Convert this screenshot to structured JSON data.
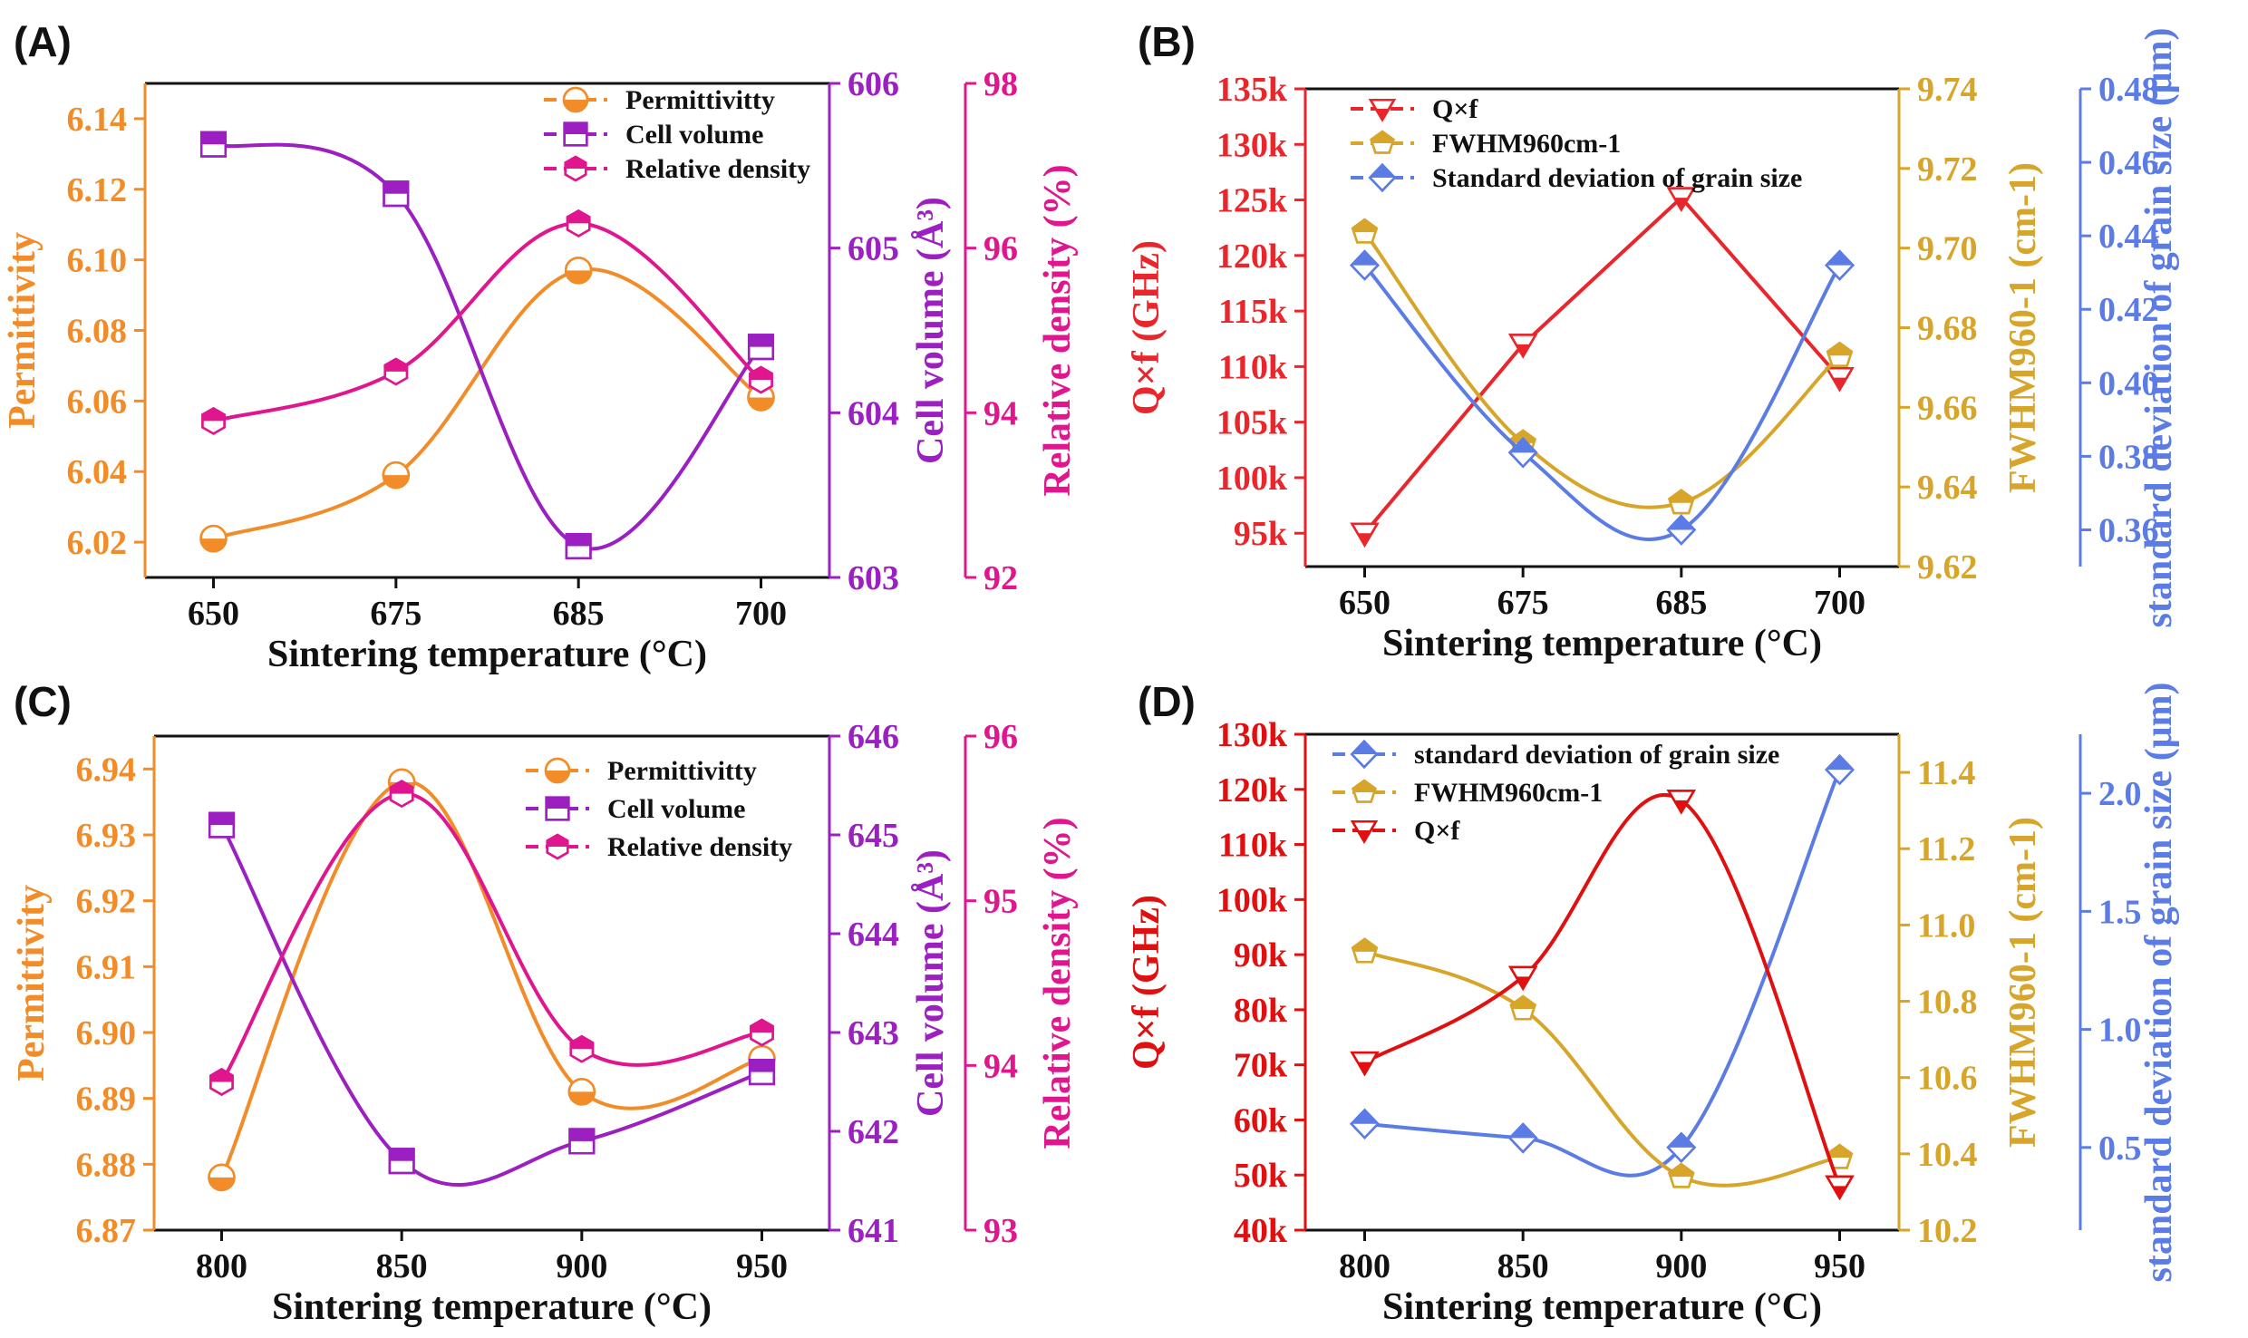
{
  "chart_data": [
    {
      "panel": "(A)",
      "type": "line",
      "xlabel": "Sintering temperature (°C)",
      "x": [
        650,
        675,
        685,
        700
      ],
      "xticks": [
        650,
        675,
        685,
        700
      ],
      "xtick_labels": [
        "650",
        "675",
        "685",
        "700"
      ],
      "series": [
        {
          "name": "Permittivitty",
          "axis": "Permittivity",
          "color": "#f28c28",
          "marker": "circle",
          "values": [
            6.021,
            6.039,
            6.097,
            6.061
          ]
        },
        {
          "name": "Cell volume",
          "axis": "Cell volume (Å³)",
          "color": "#9b1fc1",
          "marker": "square",
          "values": [
            605.63,
            605.33,
            603.19,
            604.4
          ]
        },
        {
          "name": "Relative density",
          "axis": "Relative density (%)",
          "color": "#e0168e",
          "marker": "hexagon",
          "values": [
            93.9,
            94.5,
            96.3,
            94.4
          ]
        }
      ],
      "axes": [
        {
          "label": "Permittivity",
          "side": "left",
          "color": "#f28c28",
          "ylim": [
            6.01,
            6.15
          ],
          "ticks": [
            6.02,
            6.04,
            6.06,
            6.08,
            6.1,
            6.12,
            6.14
          ],
          "tick_labels": [
            "6.02",
            "6.04",
            "6.06",
            "6.08",
            "6.10",
            "6.12",
            "6.14"
          ]
        },
        {
          "label": "Cell volume (Å³)",
          "side": "right",
          "color": "#9b1fc1",
          "ylim": [
            603,
            606
          ],
          "ticks": [
            603,
            604,
            605,
            606
          ],
          "tick_labels": [
            "603",
            "604",
            "605",
            "606"
          ]
        },
        {
          "label": "Relative density (%)",
          "side": "right",
          "color": "#e0168e",
          "ylim": [
            92,
            98
          ],
          "ticks": [
            92,
            94,
            96,
            98
          ],
          "tick_labels": [
            "92",
            "94",
            "96",
            "98"
          ]
        }
      ],
      "legend": "top-right"
    },
    {
      "panel": "(B)",
      "type": "line",
      "xlabel": "Sintering temperature (°C)",
      "x": [
        650,
        675,
        685,
        700
      ],
      "xticks": [
        650,
        675,
        685,
        700
      ],
      "xtick_labels": [
        "650",
        "675",
        "685",
        "700"
      ],
      "series": [
        {
          "name": "Q×f",
          "axis": "Q×f (GHz)",
          "color": "#e8262b",
          "marker": "triangle-down",
          "values": [
            95000,
            112000,
            125200,
            109000
          ]
        },
        {
          "name": "FWHM960cm-1",
          "axis": "FWHM960-1 (cm-1)",
          "color": "#d6a52a",
          "marker": "pentagon",
          "values": [
            9.704,
            9.651,
            9.636,
            9.673
          ]
        },
        {
          "name": "Standard deviation of grain size",
          "axis": "standard deviation of grain size (μm)",
          "color": "#5b7be5",
          "marker": "diamond",
          "values": [
            0.432,
            0.381,
            0.36,
            0.432
          ]
        }
      ],
      "axes": [
        {
          "label": "Q×f (GHz)",
          "side": "left",
          "color": "#e8262b",
          "ylim": [
            92000,
            135000
          ],
          "ticks": [
            95000,
            100000,
            105000,
            110000,
            115000,
            120000,
            125000,
            130000,
            135000
          ],
          "tick_labels": [
            "95k",
            "100k",
            "105k",
            "110k",
            "115k",
            "120k",
            "125k",
            "130k",
            "135k"
          ]
        },
        {
          "label": "FWHM960-1 (cm-1)",
          "side": "right",
          "color": "#d6a52a",
          "ylim": [
            9.62,
            9.74
          ],
          "ticks": [
            9.62,
            9.64,
            9.66,
            9.68,
            9.7,
            9.72,
            9.74
          ],
          "tick_labels": [
            "9.62",
            "9.64",
            "9.66",
            "9.68",
            "9.70",
            "9.72",
            "9.74"
          ]
        },
        {
          "label": "standard deviation of grain size (μm)",
          "side": "right",
          "color": "#5b7be5",
          "ylim": [
            0.35,
            0.48
          ],
          "ticks": [
            0.36,
            0.38,
            0.4,
            0.42,
            0.44,
            0.46,
            0.48
          ],
          "tick_labels": [
            "0.36",
            "0.38",
            "0.40",
            "0.42",
            "0.44",
            "0.46",
            "0.48"
          ]
        }
      ],
      "legend": "top-left"
    },
    {
      "panel": "(C)",
      "type": "line",
      "xlabel": "Sintering temperature (°C)",
      "x": [
        800,
        850,
        900,
        950
      ],
      "xticks": [
        800,
        850,
        900,
        950
      ],
      "xtick_labels": [
        "800",
        "850",
        "900",
        "950"
      ],
      "series": [
        {
          "name": "Permittivitty",
          "axis": "Permittivity",
          "color": "#f28c28",
          "marker": "circle",
          "values": [
            6.878,
            6.938,
            6.891,
            6.896
          ]
        },
        {
          "name": "Cell volume",
          "axis": "Cell volume (Å³)",
          "color": "#9b1fc1",
          "marker": "square",
          "values": [
            645.1,
            641.7,
            641.9,
            642.6
          ]
        },
        {
          "name": "Relative density",
          "axis": "Relative density (%)",
          "color": "#e0168e",
          "marker": "hexagon",
          "values": [
            93.9,
            95.65,
            94.1,
            94.2
          ]
        }
      ],
      "axes": [
        {
          "label": "Permittivity",
          "side": "left",
          "color": "#f28c28",
          "ylim": [
            6.87,
            6.945
          ],
          "ticks": [
            6.87,
            6.88,
            6.89,
            6.9,
            6.91,
            6.92,
            6.93,
            6.94
          ],
          "tick_labels": [
            "6.87",
            "6.88",
            "6.89",
            "6.90",
            "6.91",
            "6.92",
            "6.93",
            "6.94"
          ]
        },
        {
          "label": "Cell volume (Å³)",
          "side": "right",
          "color": "#9b1fc1",
          "ylim": [
            641,
            646
          ],
          "ticks": [
            641,
            642,
            643,
            644,
            645,
            646
          ],
          "tick_labels": [
            "641",
            "642",
            "643",
            "644",
            "645",
            "646"
          ]
        },
        {
          "label": "Relative density (%)",
          "side": "right",
          "color": "#e0168e",
          "ylim": [
            93,
            96
          ],
          "ticks": [
            93,
            94,
            95,
            96
          ],
          "tick_labels": [
            "93",
            "94",
            "95",
            "96"
          ]
        }
      ],
      "legend": "top-right"
    },
    {
      "panel": "(D)",
      "type": "line",
      "xlabel": "Sintering temperature (°C)",
      "x": [
        800,
        850,
        900,
        950
      ],
      "xticks": [
        800,
        850,
        900,
        950
      ],
      "xtick_labels": [
        "800",
        "850",
        "900",
        "950"
      ],
      "series": [
        {
          "name": "standard deviation of grain size",
          "axis": "standard deviation of grain size (μm)",
          "color": "#5b7be5",
          "marker": "diamond",
          "values": [
            0.6,
            0.54,
            0.5,
            2.1
          ]
        },
        {
          "name": "FWHM960cm-1",
          "axis": "FWHM960-1 (cm-1)",
          "color": "#d6a52a",
          "marker": "pentagon",
          "values": [
            10.93,
            10.78,
            10.34,
            10.39
          ]
        },
        {
          "name": "Q×f",
          "axis": "Q×f (GHz)",
          "color": "#e01010",
          "marker": "triangle-down",
          "values": [
            70500,
            86000,
            118000,
            48000
          ]
        }
      ],
      "axes": [
        {
          "label": "Q×f (GHz)",
          "side": "left",
          "color": "#e01010",
          "ylim": [
            40000,
            130000
          ],
          "ticks": [
            40000,
            50000,
            60000,
            70000,
            80000,
            90000,
            100000,
            110000,
            120000,
            130000
          ],
          "tick_labels": [
            "40k",
            "50k",
            "60k",
            "70k",
            "80k",
            "90k",
            "100k",
            "110k",
            "120k",
            "130k"
          ]
        },
        {
          "label": "FWHM960-1 (cm-1)",
          "side": "right",
          "color": "#d6a52a",
          "ylim": [
            10.2,
            11.5
          ],
          "ticks": [
            10.2,
            10.4,
            10.6,
            10.8,
            11.0,
            11.2,
            11.4
          ],
          "tick_labels": [
            "10.2",
            "10.4",
            "10.6",
            "10.8",
            "11.0",
            "11.2",
            "11.4"
          ]
        },
        {
          "label": "standard deviation of grain size (μm)",
          "side": "right",
          "color": "#5b7be5",
          "ylim": [
            0.15,
            2.25
          ],
          "ticks": [
            0.5,
            1.0,
            1.5,
            2.0
          ],
          "tick_labels": [
            "0.5",
            "1.0",
            "1.5",
            "2.0"
          ]
        }
      ],
      "legend": "top-left"
    }
  ]
}
